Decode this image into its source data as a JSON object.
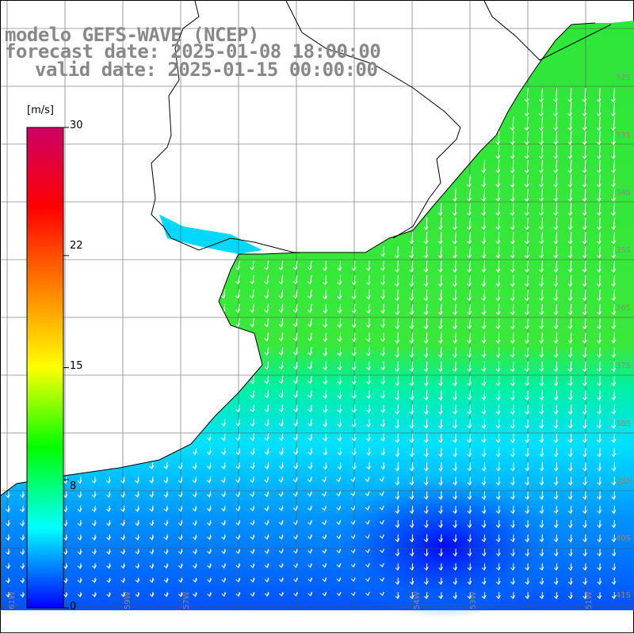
{
  "title": {
    "line1": "modelo GEFS-WAVE (NCEP)",
    "line2": "forecast date: 2025-01-08 18:00:00",
    "line3": "valid date: 2025-01-15 00:00:00"
  },
  "colorbar": {
    "units": "[m/s]",
    "min": 0,
    "max": 30,
    "ticks": [
      "30",
      "22",
      "15",
      "8",
      "0"
    ],
    "tick_values": [
      30,
      22,
      15,
      8,
      0
    ],
    "colors": [
      "#0000ff",
      "#00ffff",
      "#00ff00",
      "#ffff00",
      "#ff8000",
      "#ff0000",
      "#cc0066"
    ]
  },
  "lat_labels": [
    "32S",
    "33S",
    "34S",
    "35S",
    "36S",
    "37S",
    "38S",
    "39S",
    "40S",
    "41S"
  ],
  "lon_labels": [
    "61W",
    "59W",
    "57W",
    "54W",
    "53W",
    "51W"
  ],
  "colors": {
    "ocean_green": "#33ee33",
    "ocean_cyan": "#00ffff",
    "ocean_blue": "#0060ff",
    "land": "#ffffff",
    "grid": "#555555",
    "coast": "#000000",
    "arrows": "#ffffff"
  }
}
